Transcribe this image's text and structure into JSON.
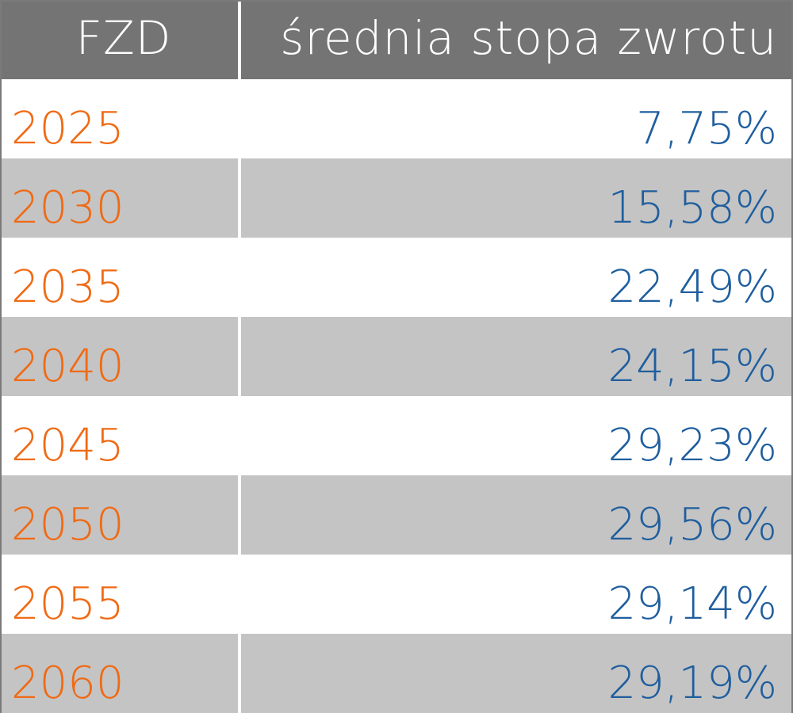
{
  "chart_data": {
    "type": "table",
    "columns": [
      "FZD",
      "średnia stopa zwrotu"
    ],
    "rows": [
      {
        "year": "2025",
        "value": "7,75%"
      },
      {
        "year": "2030",
        "value": "15,58%"
      },
      {
        "year": "2035",
        "value": "22,49%"
      },
      {
        "year": "2040",
        "value": "24,15%"
      },
      {
        "year": "2045",
        "value": "29,23%"
      },
      {
        "year": "2050",
        "value": "29,56%"
      },
      {
        "year": "2055",
        "value": "29,14%"
      },
      {
        "year": "2060",
        "value": "29,19%"
      }
    ]
  },
  "colors": {
    "header_bg": "#747474",
    "header_text": "#ffffff",
    "row_alt_bg": "#c4c4c4",
    "year_text": "#f06a14",
    "value_text": "#1f5e9e"
  }
}
